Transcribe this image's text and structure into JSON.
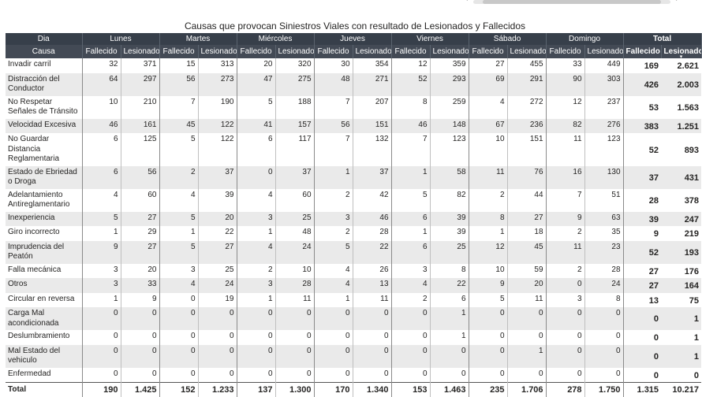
{
  "title": "Causas que provocan Siniestros Viales con resultado de Lesionados y Fallecidos",
  "scroll_left_glyph": "‹",
  "scroll_right_glyph": "›",
  "header": {
    "dia_label": "Dia",
    "causa_label": "Causa",
    "days": [
      "Lunes",
      "Martes",
      "Miércoles",
      "Jueves",
      "Viernes",
      "Sábado",
      "Domingo"
    ],
    "total_label": "Total",
    "fallecido_label": "Fallecido",
    "lesionado_label": "Lesionado",
    "sort_glyph": "▾"
  },
  "rows": [
    {
      "cause": "Invadir carril",
      "v": [
        "32",
        "371",
        "15",
        "313",
        "20",
        "320",
        "30",
        "354",
        "12",
        "359",
        "27",
        "455",
        "33",
        "449"
      ],
      "tf": "169",
      "tl": "2.621"
    },
    {
      "cause": "Distracción del Conductor",
      "v": [
        "64",
        "297",
        "56",
        "273",
        "47",
        "275",
        "48",
        "271",
        "52",
        "293",
        "69",
        "291",
        "90",
        "303"
      ],
      "tf": "426",
      "tl": "2.003"
    },
    {
      "cause": "No Respetar Señales de Tránsito",
      "v": [
        "10",
        "210",
        "7",
        "190",
        "5",
        "188",
        "7",
        "207",
        "8",
        "259",
        "4",
        "272",
        "12",
        "237"
      ],
      "tf": "53",
      "tl": "1.563"
    },
    {
      "cause": "Velocidad Excesiva",
      "v": [
        "46",
        "161",
        "45",
        "122",
        "41",
        "157",
        "56",
        "151",
        "46",
        "148",
        "67",
        "236",
        "82",
        "276"
      ],
      "tf": "383",
      "tl": "1.251"
    },
    {
      "cause": "No Guardar Distancia Reglamentaria",
      "v": [
        "6",
        "125",
        "5",
        "122",
        "6",
        "117",
        "7",
        "132",
        "7",
        "123",
        "10",
        "151",
        "11",
        "123"
      ],
      "tf": "52",
      "tl": "893"
    },
    {
      "cause": "Estado de Ebriedad o Droga",
      "v": [
        "6",
        "56",
        "2",
        "37",
        "0",
        "37",
        "1",
        "37",
        "1",
        "58",
        "11",
        "76",
        "16",
        "130"
      ],
      "tf": "37",
      "tl": "431"
    },
    {
      "cause": "Adelantamiento Antireglamentario",
      "v": [
        "4",
        "60",
        "4",
        "39",
        "4",
        "60",
        "2",
        "42",
        "5",
        "82",
        "2",
        "44",
        "7",
        "51"
      ],
      "tf": "28",
      "tl": "378"
    },
    {
      "cause": "Inexperiencia",
      "v": [
        "5",
        "27",
        "5",
        "20",
        "3",
        "25",
        "3",
        "46",
        "6",
        "39",
        "8",
        "27",
        "9",
        "63"
      ],
      "tf": "39",
      "tl": "247"
    },
    {
      "cause": "Giro incorrecto",
      "v": [
        "1",
        "29",
        "1",
        "22",
        "1",
        "48",
        "2",
        "28",
        "1",
        "39",
        "1",
        "18",
        "2",
        "35"
      ],
      "tf": "9",
      "tl": "219"
    },
    {
      "cause": "Imprudencia del Peatón",
      "v": [
        "9",
        "27",
        "5",
        "27",
        "4",
        "24",
        "5",
        "22",
        "6",
        "25",
        "12",
        "45",
        "11",
        "23"
      ],
      "tf": "52",
      "tl": "193"
    },
    {
      "cause": "Falla mecánica",
      "v": [
        "3",
        "20",
        "3",
        "25",
        "2",
        "10",
        "4",
        "26",
        "3",
        "8",
        "10",
        "59",
        "2",
        "28"
      ],
      "tf": "27",
      "tl": "176"
    },
    {
      "cause": "Otros",
      "v": [
        "3",
        "33",
        "4",
        "24",
        "3",
        "28",
        "4",
        "13",
        "4",
        "22",
        "9",
        "20",
        "0",
        "24"
      ],
      "tf": "27",
      "tl": "164"
    },
    {
      "cause": "Circular en reversa",
      "v": [
        "1",
        "9",
        "0",
        "19",
        "1",
        "11",
        "1",
        "11",
        "2",
        "6",
        "5",
        "11",
        "3",
        "8"
      ],
      "tf": "13",
      "tl": "75"
    },
    {
      "cause": "Carga Mal acondicionada",
      "v": [
        "0",
        "0",
        "0",
        "0",
        "0",
        "0",
        "0",
        "0",
        "0",
        "1",
        "0",
        "0",
        "0",
        "0"
      ],
      "tf": "0",
      "tl": "1"
    },
    {
      "cause": "Deslumbramiento",
      "v": [
        "0",
        "0",
        "0",
        "0",
        "0",
        "0",
        "0",
        "0",
        "0",
        "1",
        "0",
        "0",
        "0",
        "0"
      ],
      "tf": "0",
      "tl": "1"
    },
    {
      "cause": "Mal Estado del vehiculo",
      "v": [
        "0",
        "0",
        "0",
        "0",
        "0",
        "0",
        "0",
        "0",
        "0",
        "0",
        "0",
        "1",
        "0",
        "0"
      ],
      "tf": "0",
      "tl": "1"
    },
    {
      "cause": "Enfermedad",
      "v": [
        "0",
        "0",
        "0",
        "0",
        "0",
        "0",
        "0",
        "0",
        "0",
        "0",
        "0",
        "0",
        "0",
        "0"
      ],
      "tf": "0",
      "tl": "0"
    }
  ],
  "total_row": {
    "label": "Total",
    "v": [
      "190",
      "1.425",
      "152",
      "1.233",
      "137",
      "1.300",
      "170",
      "1.340",
      "153",
      "1.463",
      "235",
      "1.706",
      "278",
      "1.750"
    ],
    "tf": "1.315",
    "tl": "10.217"
  }
}
